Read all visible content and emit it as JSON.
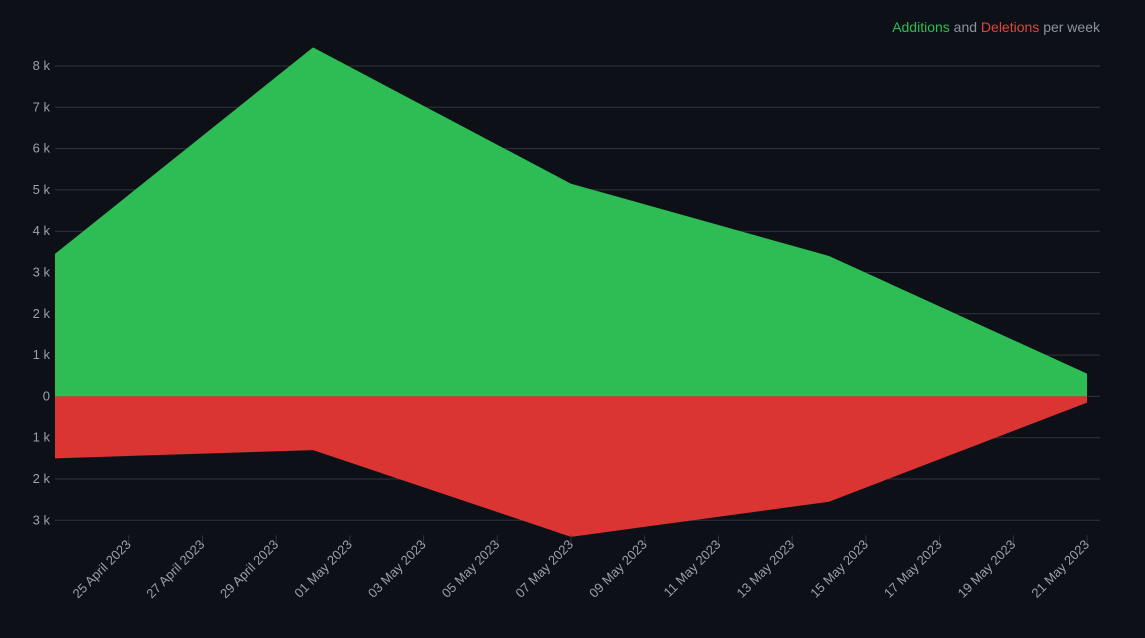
{
  "legend": {
    "additions_label": "Additions",
    "and_text": "and",
    "deletions_label": "Deletions",
    "suffix": "per week"
  },
  "colors": {
    "additions": "#2dbd54",
    "deletions": "#db3533",
    "background": "#0d1017",
    "grid": "#30363d",
    "text": "#9aa1a9"
  },
  "chart_data": {
    "type": "area",
    "title": "",
    "xlabel": "",
    "ylabel": "",
    "x": [
      "2023-04-23",
      "2023-04-30",
      "2023-05-07",
      "2023-05-14",
      "2023-05-21"
    ],
    "series": [
      {
        "name": "Additions",
        "values": [
          3450,
          8450,
          5150,
          3400,
          550
        ]
      },
      {
        "name": "Deletions",
        "values": [
          -1500,
          -1300,
          -3400,
          -2550,
          -150
        ]
      }
    ],
    "ylim": [
      -3000,
      8000
    ],
    "y_ticks": [
      8000,
      7000,
      6000,
      5000,
      4000,
      3000,
      2000,
      1000,
      0,
      -1000,
      -2000,
      -3000
    ],
    "y_tick_labels": [
      "8 k",
      "7 k",
      "6 k",
      "5 k",
      "4 k",
      "3 k",
      "2 k",
      "1 k",
      "0",
      "1 k",
      "2 k",
      "3 k"
    ],
    "x_ticks": [
      "2023-04-25",
      "2023-04-27",
      "2023-04-29",
      "2023-05-01",
      "2023-05-03",
      "2023-05-05",
      "2023-05-07",
      "2023-05-09",
      "2023-05-11",
      "2023-05-13",
      "2023-05-15",
      "2023-05-17",
      "2023-05-19",
      "2023-05-21"
    ],
    "x_tick_labels": [
      "25 April 2023",
      "27 April 2023",
      "29 April 2023",
      "01 May 2023",
      "03 May 2023",
      "05 May 2023",
      "07 May 2023",
      "09 May 2023",
      "11 May 2023",
      "13 May 2023",
      "15 May 2023",
      "17 May 2023",
      "19 May 2023",
      "21 May 2023"
    ],
    "grid": true,
    "legend_position": "top-right"
  }
}
